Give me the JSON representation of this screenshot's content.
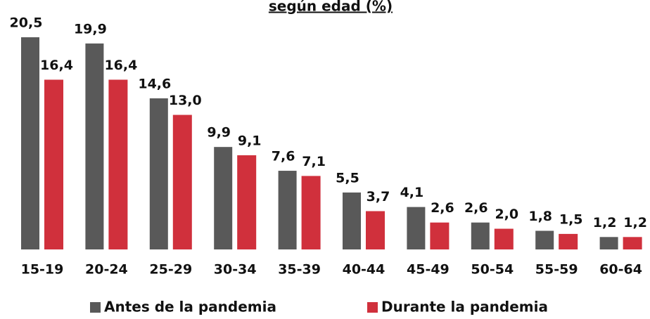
{
  "chart_data": {
    "type": "bar",
    "title": "según edad (%)",
    "categories": [
      "15-19",
      "20-24",
      "25-29",
      "30-34",
      "35-39",
      "40-44",
      "45-49",
      "50-54",
      "55-59",
      "60-64"
    ],
    "series": [
      {
        "name": "Antes de la pandemia",
        "color": "#595959",
        "values": [
          20.5,
          19.9,
          14.6,
          9.9,
          7.6,
          5.5,
          4.1,
          2.6,
          1.8,
          1.2
        ],
        "value_labels": [
          "20,5",
          "19,9",
          "14,6",
          "9,9",
          "7,6",
          "5,5",
          "4,1",
          "2,6",
          "1,8",
          "1,2"
        ]
      },
      {
        "name": "Durante la pandemia",
        "color": "#d0303c",
        "values": [
          16.4,
          16.4,
          13.0,
          9.1,
          7.1,
          3.7,
          2.6,
          2.0,
          1.5,
          1.2
        ],
        "value_labels": [
          "16,4",
          "16,4",
          "13,0",
          "9,1",
          "7,1",
          "3,7",
          "2,6",
          "2,0",
          "1,5",
          "1,2"
        ]
      }
    ]
  }
}
